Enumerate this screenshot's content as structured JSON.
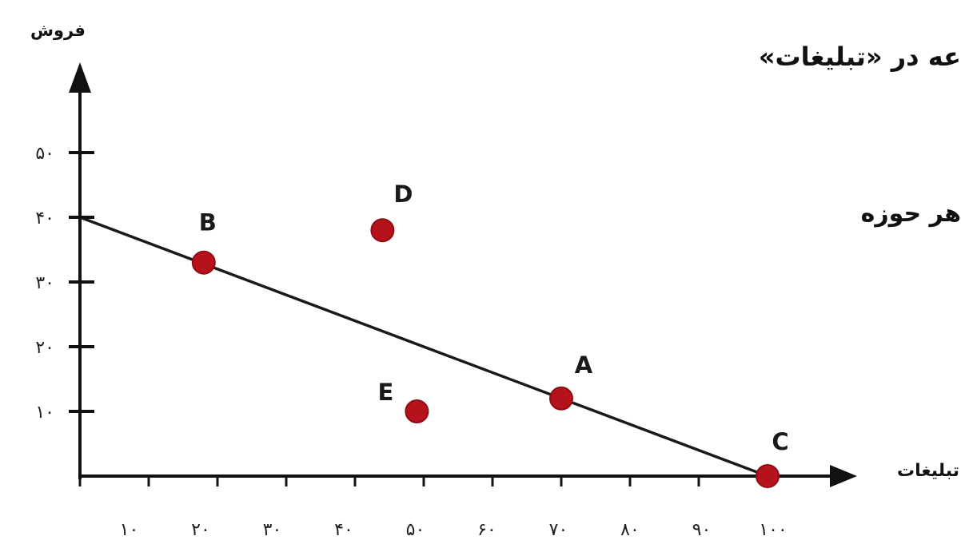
{
  "page": {
    "text_fragments": [
      "عه در «تبلیغات»",
      "هر حوزه"
    ]
  },
  "chart_data": {
    "type": "scatter",
    "xlabel": "تبلیغات",
    "ylabel": "فروش",
    "xlim": [
      0,
      100
    ],
    "ylim": [
      0,
      50
    ],
    "grid": false,
    "x_ticks": [
      {
        "value": 10,
        "label": "۱۰"
      },
      {
        "value": 20,
        "label": "۲۰"
      },
      {
        "value": 30,
        "label": "۳۰"
      },
      {
        "value": 40,
        "label": "۴۰"
      },
      {
        "value": 50,
        "label": "۵۰"
      },
      {
        "value": 60,
        "label": "۶۰"
      },
      {
        "value": 70,
        "label": "۷۰"
      },
      {
        "value": 80,
        "label": "۸۰"
      },
      {
        "value": 90,
        "label": "۹۰"
      },
      {
        "value": 100,
        "label": "۱۰۰"
      }
    ],
    "y_ticks": [
      {
        "value": 10,
        "label": "۱۰"
      },
      {
        "value": 20,
        "label": "۲۰"
      },
      {
        "value": 30,
        "label": "۳۰"
      },
      {
        "value": 40,
        "label": "۴۰"
      },
      {
        "value": 50,
        "label": "۵۰"
      }
    ],
    "line": {
      "x": [
        0,
        100
      ],
      "y": [
        40,
        0
      ]
    },
    "points": [
      {
        "label": "A",
        "x": 70,
        "y": 12
      },
      {
        "label": "B",
        "x": 18,
        "y": 33
      },
      {
        "label": "C",
        "x": 100,
        "y": 0
      },
      {
        "label": "D",
        "x": 44,
        "y": 38
      },
      {
        "label": "E",
        "x": 49,
        "y": 10
      }
    ],
    "colors": {
      "points": "#b5121b",
      "points_stroke": "#8e0d14",
      "line": "#1a1a1a",
      "axes": "#111111"
    }
  }
}
